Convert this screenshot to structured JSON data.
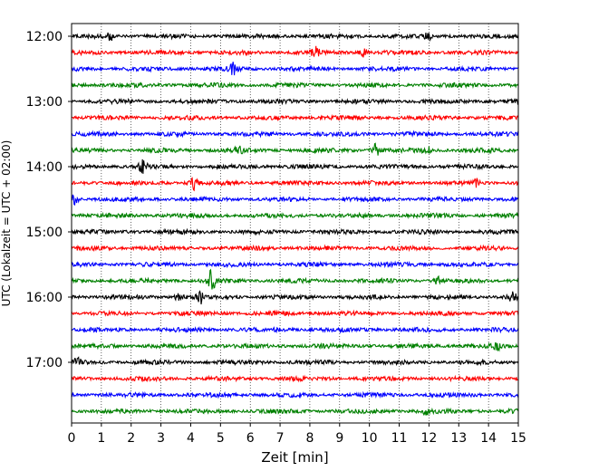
{
  "chart_data": {
    "type": "line",
    "title": "",
    "xlabel": "Zeit  [min]",
    "ylabel": "UTC (Lokalzeit = UTC + 02:00)",
    "xlim": [
      0,
      15
    ],
    "x_ticks": [
      "0",
      "1",
      "2",
      "3",
      "4",
      "5",
      "6",
      "7",
      "8",
      "9",
      "10",
      "11",
      "12",
      "13",
      "14",
      "15"
    ],
    "y_ticks": [
      "12:00",
      "13:00",
      "14:00",
      "15:00",
      "16:00",
      "17:00"
    ],
    "grid": "vertical dotted",
    "trace_interval_min": 15,
    "series_colors": [
      "#000000",
      "#ff0000",
      "#0000ff",
      "#008000"
    ],
    "traces": [
      {
        "start": "12:00",
        "events": [
          {
            "t": 1.3,
            "a": 0.5
          },
          {
            "t": 12.0,
            "a": 0.5
          }
        ]
      },
      {
        "start": "12:15",
        "events": [
          {
            "t": 8.2,
            "a": 1.0
          },
          {
            "t": 9.8,
            "a": 0.6
          }
        ]
      },
      {
        "start": "12:30",
        "events": [
          {
            "t": 5.4,
            "a": 0.9
          }
        ]
      },
      {
        "start": "12:45",
        "events": []
      },
      {
        "start": "13:00",
        "events": []
      },
      {
        "start": "13:15",
        "events": []
      },
      {
        "start": "13:30",
        "events": []
      },
      {
        "start": "13:45",
        "events": [
          {
            "t": 5.6,
            "a": 0.5
          },
          {
            "t": 10.2,
            "a": 1.0
          },
          {
            "t": 11.9,
            "a": 0.9
          }
        ]
      },
      {
        "start": "14:00",
        "events": [
          {
            "t": 2.4,
            "a": 1.0
          }
        ]
      },
      {
        "start": "14:15",
        "events": [
          {
            "t": 4.1,
            "a": 1.0
          },
          {
            "t": 13.6,
            "a": 0.5
          }
        ]
      },
      {
        "start": "14:30",
        "events": [
          {
            "t": 0.1,
            "a": 0.7
          }
        ]
      },
      {
        "start": "14:45",
        "events": []
      },
      {
        "start": "15:00",
        "events": []
      },
      {
        "start": "15:15",
        "events": []
      },
      {
        "start": "15:30",
        "events": []
      },
      {
        "start": "15:45",
        "events": [
          {
            "t": 4.7,
            "a": 1.6
          },
          {
            "t": 12.3,
            "a": 0.5
          }
        ]
      },
      {
        "start": "16:00",
        "events": [
          {
            "t": 3.6,
            "a": 0.6
          },
          {
            "t": 4.3,
            "a": 1.0
          },
          {
            "t": 14.8,
            "a": 0.7
          }
        ]
      },
      {
        "start": "16:15",
        "events": []
      },
      {
        "start": "16:30",
        "events": []
      },
      {
        "start": "16:45",
        "events": [
          {
            "t": 14.3,
            "a": 0.4
          }
        ]
      },
      {
        "start": "17:00",
        "events": [
          {
            "t": 0.2,
            "a": 0.5
          }
        ]
      },
      {
        "start": "17:15",
        "events": []
      },
      {
        "start": "17:30",
        "events": []
      },
      {
        "start": "17:45",
        "events": [
          {
            "t": 11.9,
            "a": 0.4
          }
        ]
      }
    ]
  }
}
